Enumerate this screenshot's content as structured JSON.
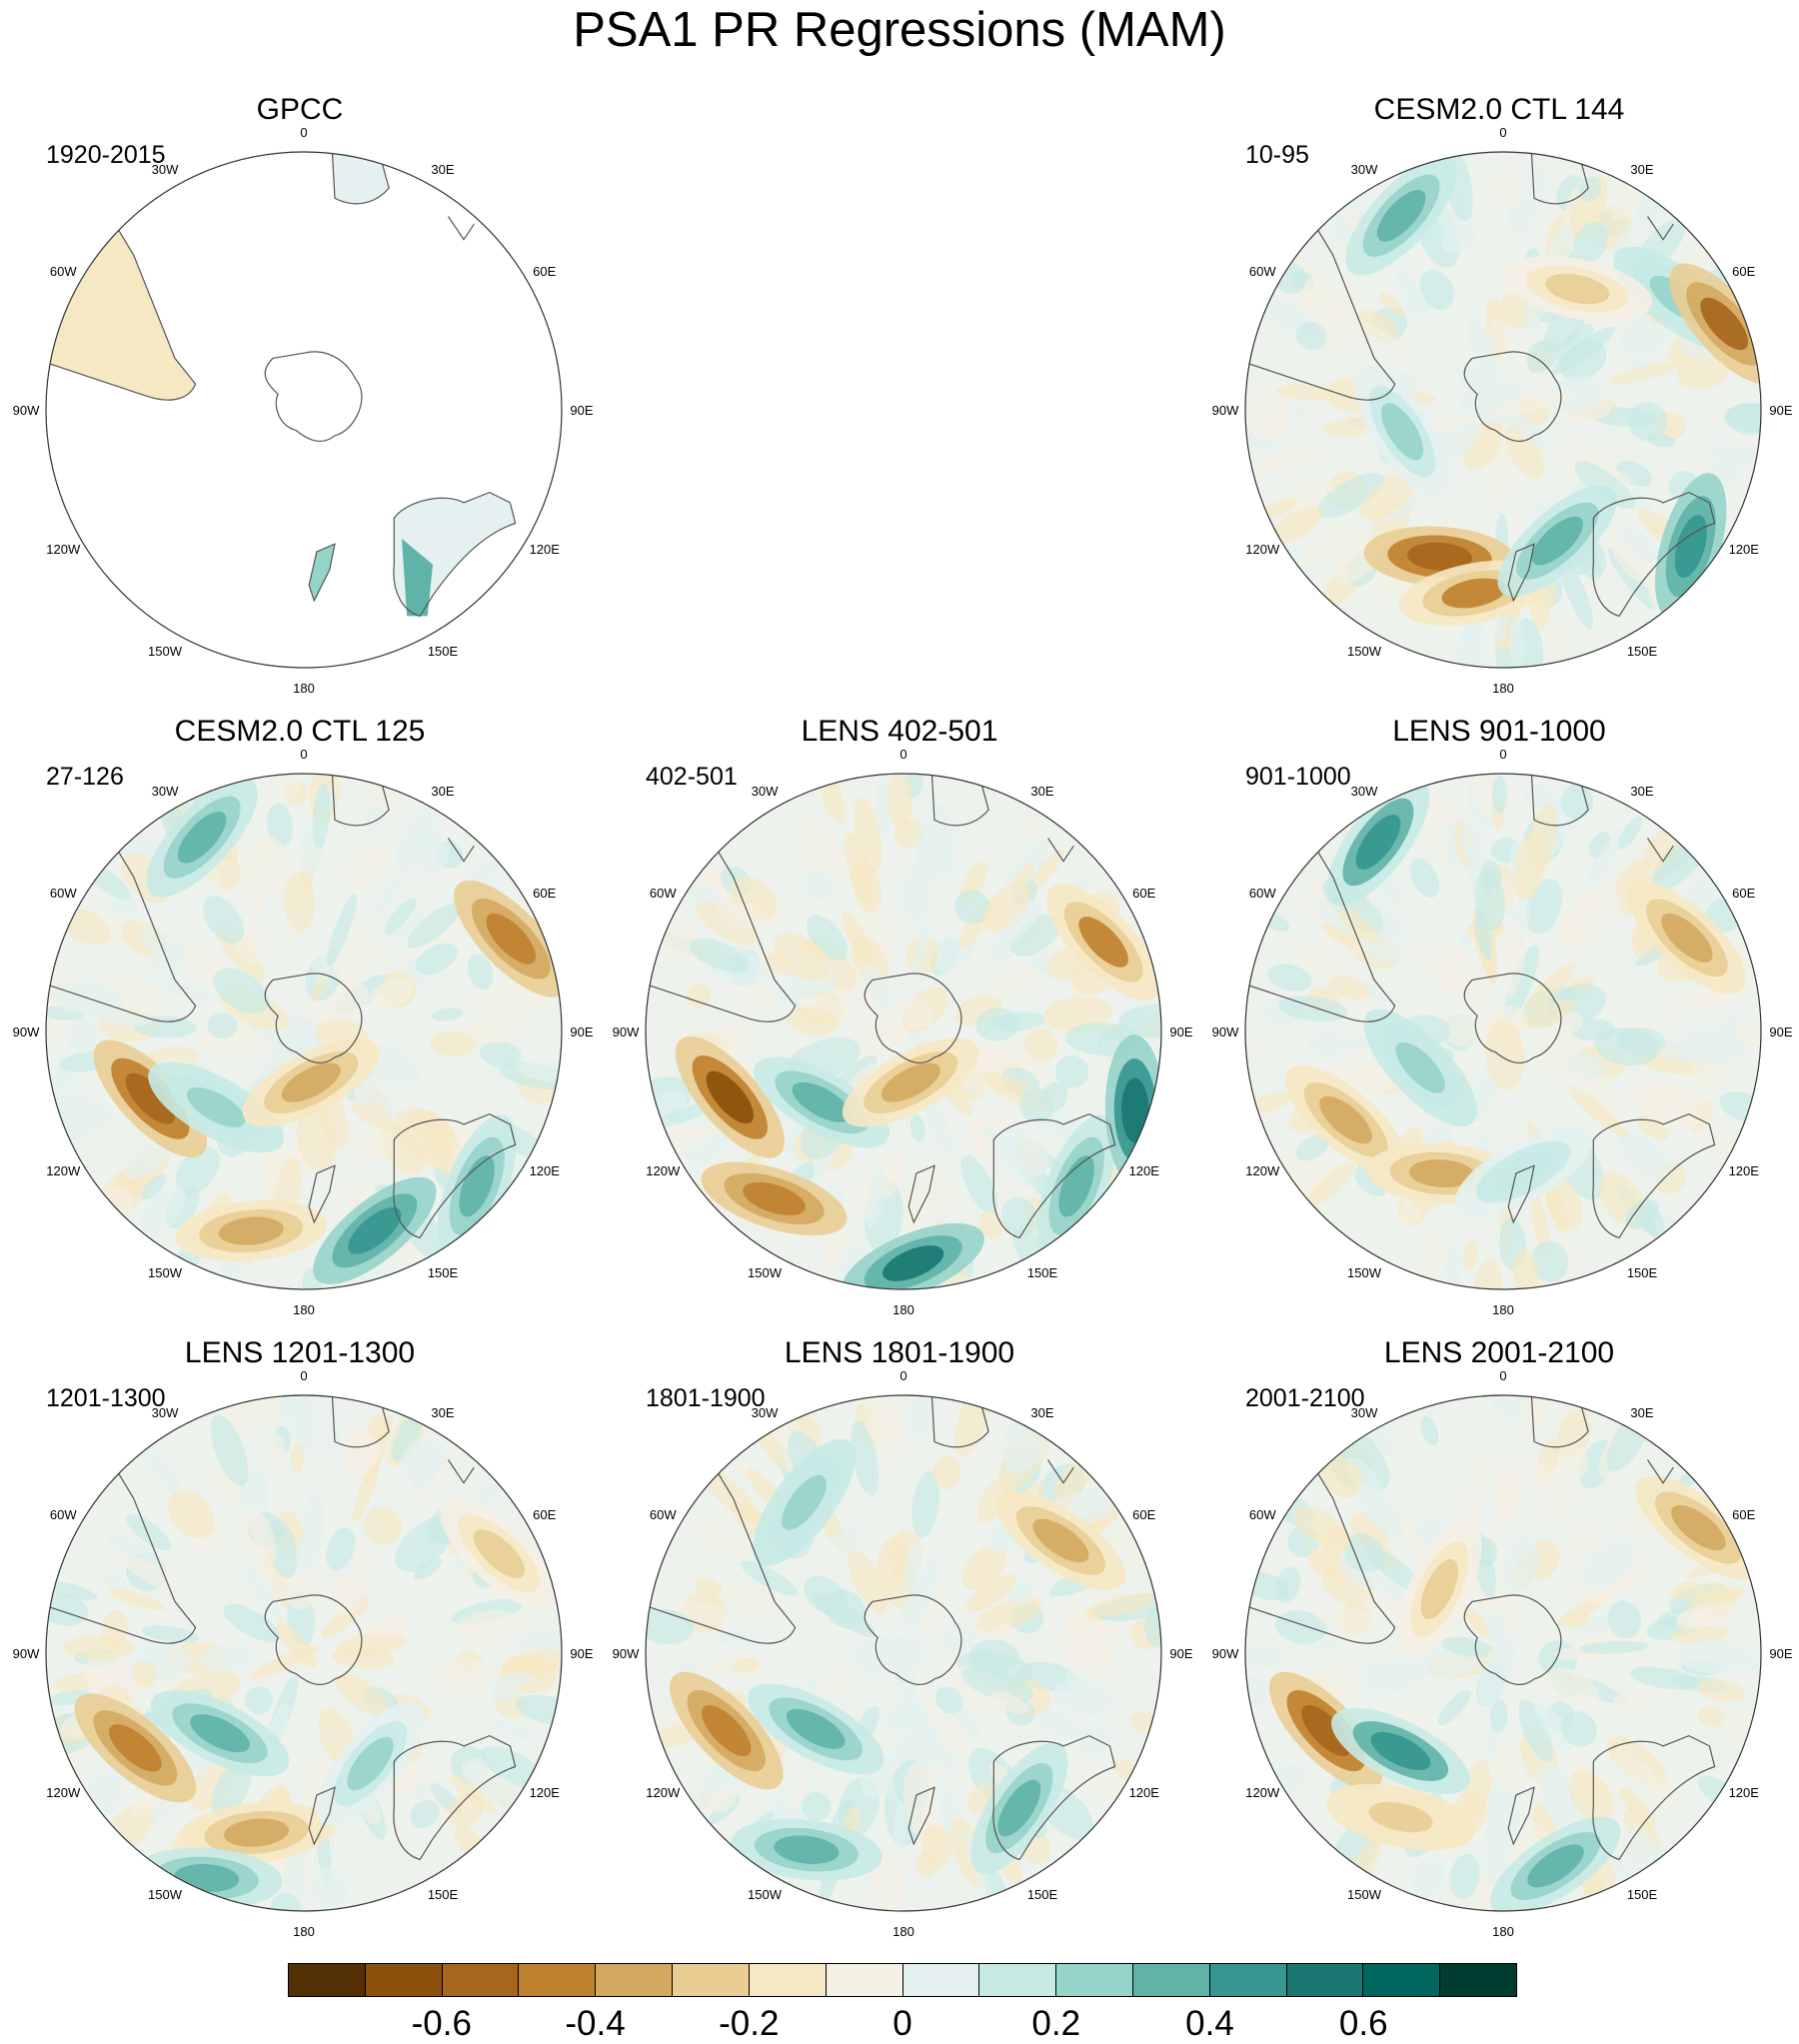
{
  "title": "PSA1 PR Regressions (MAM)",
  "longitude_labels": [
    "0",
    "30E",
    "60E",
    "90E",
    "120E",
    "150E",
    "180",
    "150W",
    "120W",
    "90W",
    "60W",
    "30W"
  ],
  "panels": [
    {
      "title": "GPCC",
      "period": "1920-2015",
      "type": "obs",
      "pattern": [
        [
          0.5,
          0.3,
          0.05
        ]
      ]
    },
    {
      "title": "",
      "period": "",
      "type": "empty",
      "pattern": []
    },
    {
      "title": "CESM2.0 CTL 144",
      "period": "10-95",
      "type": "model",
      "pattern": [
        [
          3.55,
          0.62,
          -0.55
        ],
        [
          3.3,
          0.72,
          -0.4
        ],
        [
          2.75,
          0.55,
          0.3
        ],
        [
          2.2,
          0.9,
          0.45
        ],
        [
          1.0,
          0.8,
          0.25
        ],
        [
          0.55,
          0.55,
          -0.2
        ],
        [
          1.2,
          0.92,
          -0.5
        ],
        [
          5.8,
          0.85,
          0.3
        ],
        [
          4.5,
          0.4,
          0.2
        ]
      ]
    },
    {
      "title": "CESM2.0 CTL 125",
      "period": "27-126",
      "type": "model",
      "pattern": [
        [
          4.3,
          0.65,
          -0.55
        ],
        [
          3.4,
          0.8,
          -0.35
        ],
        [
          2.8,
          0.82,
          0.45
        ],
        [
          2.3,
          0.9,
          0.35
        ],
        [
          1.15,
          0.88,
          -0.45
        ],
        [
          5.8,
          0.85,
          0.35
        ],
        [
          4.0,
          0.45,
          0.25
        ],
        [
          3.0,
          0.2,
          -0.3
        ]
      ]
    },
    {
      "title": "LENS 402-501",
      "period": "402-501",
      "type": "model",
      "pattern": [
        [
          4.35,
          0.72,
          -0.6
        ],
        [
          3.8,
          0.82,
          -0.45
        ],
        [
          3.1,
          0.9,
          0.5
        ],
        [
          2.3,
          0.9,
          0.3
        ],
        [
          1.15,
          0.85,
          -0.4
        ],
        [
          1.9,
          0.95,
          0.55
        ],
        [
          4.0,
          0.42,
          0.35
        ],
        [
          3.0,
          0.2,
          -0.3
        ]
      ]
    },
    {
      "title": "LENS 901-1000",
      "period": "901-1000",
      "type": "model",
      "pattern": [
        [
          4.2,
          0.7,
          -0.35
        ],
        [
          3.55,
          0.6,
          -0.35
        ],
        [
          5.7,
          0.88,
          0.4
        ],
        [
          1.1,
          0.8,
          -0.3
        ],
        [
          4.3,
          0.35,
          0.25
        ],
        [
          3.0,
          0.55,
          0.15
        ]
      ]
    },
    {
      "title": "LENS 1201-1300",
      "period": "1201-1300",
      "type": "model",
      "pattern": [
        [
          4.2,
          0.75,
          -0.45
        ],
        [
          3.4,
          0.72,
          -0.35
        ],
        [
          3.95,
          0.45,
          0.3
        ],
        [
          2.6,
          0.5,
          0.2
        ],
        [
          3.55,
          0.95,
          0.35
        ],
        [
          1.1,
          0.85,
          -0.2
        ]
      ]
    },
    {
      "title": "LENS 1801-1900",
      "period": "1801-1900",
      "type": "model",
      "pattern": [
        [
          4.3,
          0.75,
          -0.45
        ],
        [
          3.6,
          0.85,
          0.35
        ],
        [
          2.5,
          0.75,
          0.3
        ],
        [
          4.0,
          0.45,
          0.3
        ],
        [
          0.95,
          0.75,
          -0.3
        ],
        [
          5.7,
          0.7,
          0.25
        ]
      ]
    },
    {
      "title": "LENS 2001-2100",
      "period": "2001-2100",
      "type": "model",
      "pattern": [
        [
          4.3,
          0.75,
          -0.55
        ],
        [
          3.95,
          0.55,
          0.4
        ],
        [
          2.9,
          0.85,
          0.35
        ],
        [
          3.7,
          0.75,
          -0.25
        ],
        [
          1.0,
          0.9,
          -0.35
        ],
        [
          5.5,
          0.35,
          -0.2
        ]
      ]
    }
  ],
  "colorbar": {
    "colors": [
      "#543005",
      "#8c510a",
      "#a6661c",
      "#bf812d",
      "#d3a860",
      "#e9cd93",
      "#f6e8c3",
      "#f5f0e4",
      "#e4f1f0",
      "#c7eae5",
      "#96d3c9",
      "#5fb3a7",
      "#35978f",
      "#1a7870",
      "#01665e",
      "#003c30"
    ],
    "tick_labels": [
      "-0.6",
      "-0.4",
      "-0.2",
      "0",
      "0.2",
      "0.4",
      "0.6"
    ],
    "tick_positions": [
      2,
      4,
      6,
      8,
      10,
      12,
      14
    ]
  }
}
